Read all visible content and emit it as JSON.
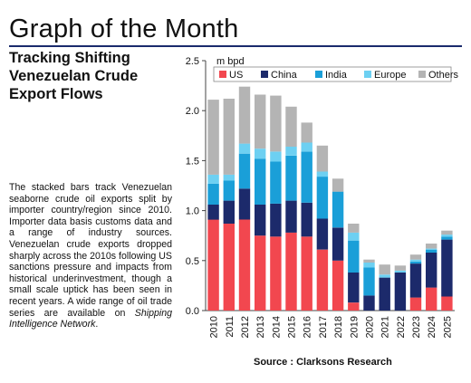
{
  "header": {
    "title": "Graph of the Month",
    "subtitle_lines": [
      "Tracking Shifting",
      "Venezuelan Crude",
      "Export Flows"
    ]
  },
  "description": {
    "text": "The stacked bars track Venezuelan seaborne crude oil exports split by importer country/region since 2010. Importer data basis customs data and a range of industry sources. Venezuelan crude exports dropped sharply across the 2010s following US sanctions pressure and impacts from historical underinvestment, though a small scale uptick has been seen in recent years. A wide range of oil trade series are available on ",
    "italic_link": "Shipping Intelligence Network",
    "end": "."
  },
  "source": "Source : Clarksons Research",
  "colors": {
    "title_rule": "#1a2a6c",
    "US": "#f2474f",
    "China": "#1c2a6b",
    "India": "#1a9fd8",
    "Europe": "#6dd0f2",
    "Others": "#b4b4b4"
  },
  "chart_data": {
    "type": "bar",
    "stacked": true,
    "ylabel": "m bpd",
    "ylim": [
      0,
      2.5
    ],
    "yticks": [
      "0.0",
      "0.5",
      "1.0",
      "1.5",
      "2.0",
      "2.5"
    ],
    "categories": [
      "2010",
      "2011",
      "2012",
      "2013",
      "2014",
      "2015",
      "2016",
      "2017",
      "2018",
      "2019",
      "2020",
      "2021",
      "2022",
      "2023",
      "2024",
      "2025"
    ],
    "legend_position": "top",
    "grid": false,
    "series": [
      {
        "name": "US",
        "color": "#f2474f",
        "values": [
          0.91,
          0.87,
          0.91,
          0.75,
          0.74,
          0.78,
          0.74,
          0.61,
          0.5,
          0.08,
          0.0,
          0.0,
          0.0,
          0.13,
          0.23,
          0.14
        ]
      },
      {
        "name": "China",
        "color": "#1c2a6b",
        "values": [
          0.15,
          0.23,
          0.31,
          0.31,
          0.33,
          0.32,
          0.34,
          0.31,
          0.33,
          0.3,
          0.15,
          0.33,
          0.38,
          0.34,
          0.35,
          0.57
        ]
      },
      {
        "name": "India",
        "color": "#1a9fd8",
        "values": [
          0.21,
          0.2,
          0.35,
          0.46,
          0.42,
          0.45,
          0.51,
          0.42,
          0.36,
          0.32,
          0.28,
          0.0,
          0.0,
          0.02,
          0.03,
          0.03
        ]
      },
      {
        "name": "Europe",
        "color": "#6dd0f2",
        "values": [
          0.09,
          0.06,
          0.1,
          0.1,
          0.1,
          0.09,
          0.09,
          0.05,
          0.0,
          0.08,
          0.05,
          0.03,
          0.02,
          0.02,
          0.01,
          0.02
        ]
      },
      {
        "name": "Others",
        "color": "#b4b4b4",
        "values": [
          0.75,
          0.76,
          0.57,
          0.54,
          0.56,
          0.4,
          0.2,
          0.26,
          0.13,
          0.09,
          0.03,
          0.1,
          0.05,
          0.05,
          0.05,
          0.04
        ]
      }
    ]
  }
}
